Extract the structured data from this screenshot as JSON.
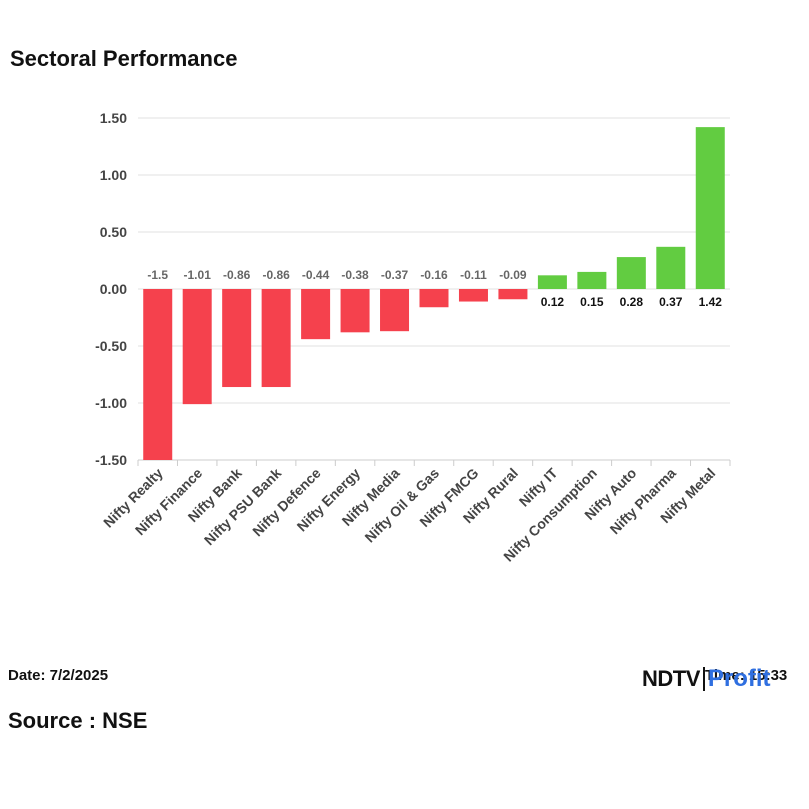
{
  "header": {
    "title": "Sectoral Performance"
  },
  "footer": {
    "date": "Date: 7/2/2025",
    "time": "Time: 15:33",
    "source": "Source : NSE",
    "logo_ndtv": "NDTV",
    "logo_profit": "Profit"
  },
  "colors": {
    "negative": "#f5414d",
    "positive": "#62cc41",
    "grid": "#e0e0e0",
    "axis_text": "#444444"
  },
  "chart_data": {
    "type": "bar",
    "title": "Sectoral Performance",
    "xlabel": "",
    "ylabel": "",
    "ylim": [
      -1.5,
      1.5
    ],
    "yticks": [
      "1.50",
      "1.00",
      "0.50",
      "0.00",
      "-0.50",
      "-1.00",
      "-1.50"
    ],
    "ytick_values": [
      1.5,
      1.0,
      0.5,
      0.0,
      -0.5,
      -1.0,
      -1.5
    ],
    "categories": [
      "Nifty Realty",
      "Nifty Finance",
      "Nifty Bank",
      "Nifty PSU Bank",
      "Nifty Defence",
      "Nifty Energy",
      "Nifty Media",
      "Nifty Oil & Gas",
      "Nifty FMCG",
      "Nifty Rural",
      "Nifty IT",
      "Nifty Consumption",
      "Nifty Auto",
      "Nifty Pharma",
      "Nifty Metal"
    ],
    "values": [
      -1.5,
      -1.01,
      -0.86,
      -0.86,
      -0.44,
      -0.38,
      -0.37,
      -0.16,
      -0.11,
      -0.09,
      0.12,
      0.15,
      0.28,
      0.37,
      1.42
    ],
    "labels": [
      "-1.5",
      "-1.01",
      "-0.86",
      "-0.86",
      "-0.44",
      "-0.38",
      "-0.37",
      "-0.16",
      "-0.11",
      "-0.09",
      "0.12",
      "0.15",
      "0.28",
      "0.37",
      "1.42"
    ],
    "grid": true
  }
}
